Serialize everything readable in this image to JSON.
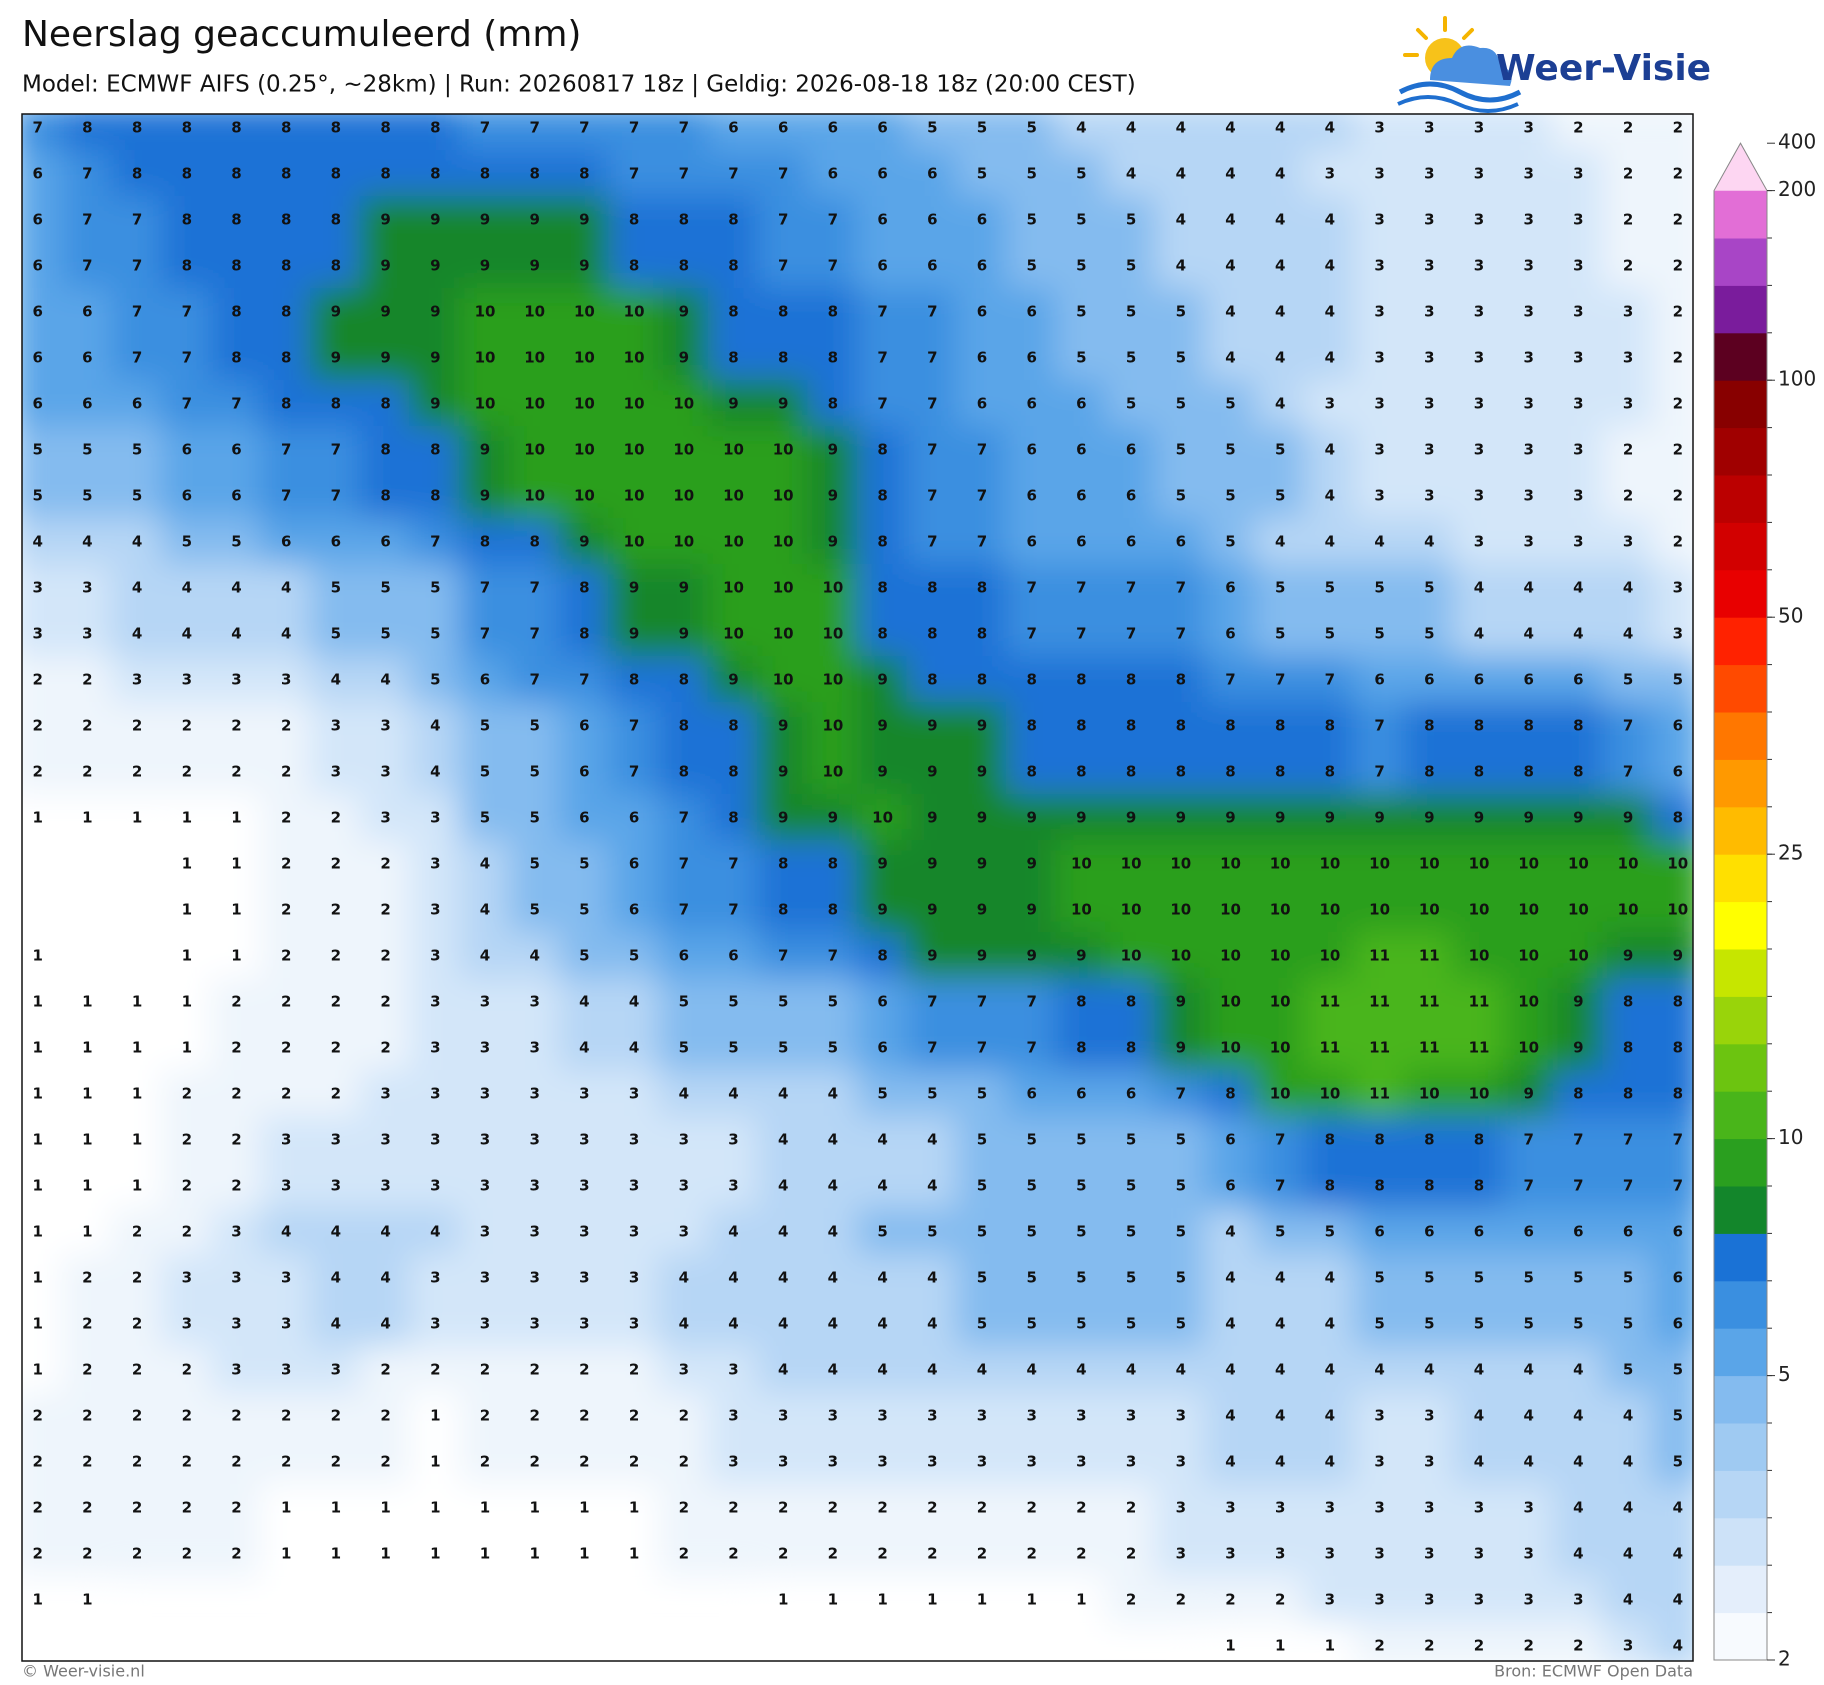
{
  "header": {
    "title": "Neerslag geaccumuleerd (mm)",
    "subtitle": "Model: ECMWF AIFS (0.25°, ~28km)  |  Run: 20260817 18z  |  Geldig: 2026-08-18 18z (20:00 CEST)",
    "logo": "Weer-Visie"
  },
  "map": {
    "values": [
      [
        7,
        8,
        8,
        8,
        8,
        8,
        8,
        8,
        8,
        7,
        7,
        7,
        7,
        7,
        6,
        6,
        6,
        6,
        5,
        5,
        5,
        4,
        4,
        4,
        4,
        4,
        4,
        3,
        3,
        3,
        3,
        2,
        2,
        2
      ],
      [
        6,
        7,
        8,
        8,
        8,
        8,
        8,
        8,
        8,
        8,
        8,
        8,
        7,
        7,
        7,
        7,
        6,
        6,
        6,
        5,
        5,
        5,
        4,
        4,
        4,
        4,
        3,
        3,
        3,
        3,
        3,
        3,
        2,
        2
      ],
      [
        6,
        7,
        7,
        8,
        8,
        8,
        8,
        9,
        9,
        9,
        9,
        9,
        8,
        8,
        8,
        7,
        7,
        6,
        6,
        6,
        5,
        5,
        5,
        4,
        4,
        4,
        4,
        3,
        3,
        3,
        3,
        3,
        2,
        2
      ],
      [
        6,
        7,
        7,
        8,
        8,
        8,
        8,
        9,
        9,
        9,
        9,
        9,
        8,
        8,
        8,
        7,
        7,
        6,
        6,
        6,
        5,
        5,
        5,
        4,
        4,
        4,
        4,
        3,
        3,
        3,
        3,
        3,
        2,
        2
      ],
      [
        6,
        6,
        7,
        7,
        8,
        8,
        9,
        9,
        9,
        10,
        10,
        10,
        10,
        9,
        8,
        8,
        8,
        7,
        7,
        6,
        6,
        5,
        5,
        5,
        4,
        4,
        4,
        3,
        3,
        3,
        3,
        3,
        3,
        2
      ],
      [
        6,
        6,
        7,
        7,
        8,
        8,
        9,
        9,
        9,
        10,
        10,
        10,
        10,
        9,
        8,
        8,
        8,
        7,
        7,
        6,
        6,
        5,
        5,
        5,
        4,
        4,
        4,
        3,
        3,
        3,
        3,
        3,
        3,
        2
      ],
      [
        6,
        6,
        6,
        7,
        7,
        8,
        8,
        8,
        9,
        10,
        10,
        10,
        10,
        10,
        9,
        9,
        8,
        7,
        7,
        6,
        6,
        6,
        5,
        5,
        5,
        4,
        3,
        3,
        3,
        3,
        3,
        3,
        3,
        2
      ],
      [
        5,
        5,
        5,
        6,
        6,
        7,
        7,
        8,
        8,
        9,
        10,
        10,
        10,
        10,
        10,
        10,
        9,
        8,
        7,
        7,
        6,
        6,
        6,
        5,
        5,
        5,
        4,
        3,
        3,
        3,
        3,
        3,
        2,
        2
      ],
      [
        5,
        5,
        5,
        6,
        6,
        7,
        7,
        8,
        8,
        9,
        10,
        10,
        10,
        10,
        10,
        10,
        9,
        8,
        7,
        7,
        6,
        6,
        6,
        5,
        5,
        5,
        4,
        3,
        3,
        3,
        3,
        3,
        2,
        2
      ],
      [
        4,
        4,
        4,
        5,
        5,
        6,
        6,
        6,
        7,
        8,
        8,
        9,
        10,
        10,
        10,
        10,
        9,
        8,
        7,
        7,
        6,
        6,
        6,
        6,
        5,
        4,
        4,
        4,
        4,
        3,
        3,
        3,
        3,
        2
      ],
      [
        3,
        3,
        4,
        4,
        4,
        4,
        5,
        5,
        5,
        7,
        7,
        8,
        9,
        9,
        10,
        10,
        10,
        8,
        8,
        8,
        7,
        7,
        7,
        7,
        6,
        5,
        5,
        5,
        5,
        4,
        4,
        4,
        4,
        3
      ],
      [
        3,
        3,
        4,
        4,
        4,
        4,
        5,
        5,
        5,
        7,
        7,
        8,
        9,
        9,
        10,
        10,
        10,
        8,
        8,
        8,
        7,
        7,
        7,
        7,
        6,
        5,
        5,
        5,
        5,
        4,
        4,
        4,
        4,
        3
      ],
      [
        2,
        2,
        3,
        3,
        3,
        3,
        4,
        4,
        5,
        6,
        7,
        7,
        8,
        8,
        9,
        10,
        10,
        9,
        8,
        8,
        8,
        8,
        8,
        8,
        7,
        7,
        7,
        6,
        6,
        6,
        6,
        6,
        5,
        5
      ],
      [
        2,
        2,
        2,
        2,
        2,
        2,
        3,
        3,
        4,
        5,
        5,
        6,
        7,
        8,
        8,
        9,
        10,
        9,
        9,
        9,
        8,
        8,
        8,
        8,
        8,
        8,
        8,
        7,
        8,
        8,
        8,
        8,
        7,
        6
      ],
      [
        2,
        2,
        2,
        2,
        2,
        2,
        3,
        3,
        4,
        5,
        5,
        6,
        7,
        8,
        8,
        9,
        10,
        9,
        9,
        9,
        8,
        8,
        8,
        8,
        8,
        8,
        8,
        7,
        8,
        8,
        8,
        8,
        7,
        6
      ],
      [
        1,
        1,
        1,
        1,
        1,
        2,
        2,
        3,
        3,
        5,
        5,
        6,
        6,
        7,
        8,
        9,
        9,
        10,
        9,
        9,
        9,
        9,
        9,
        9,
        9,
        9,
        9,
        9,
        9,
        9,
        9,
        9,
        9,
        8
      ],
      [
        null,
        null,
        null,
        1,
        1,
        2,
        2,
        2,
        3,
        4,
        5,
        5,
        6,
        7,
        7,
        8,
        8,
        9,
        9,
        9,
        9,
        10,
        10,
        10,
        10,
        10,
        10,
        10,
        10,
        10,
        10,
        10,
        10,
        10
      ],
      [
        null,
        null,
        null,
        1,
        1,
        2,
        2,
        2,
        3,
        4,
        5,
        5,
        6,
        7,
        7,
        8,
        8,
        9,
        9,
        9,
        9,
        10,
        10,
        10,
        10,
        10,
        10,
        10,
        10,
        10,
        10,
        10,
        10,
        10
      ],
      [
        1,
        null,
        null,
        1,
        1,
        2,
        2,
        2,
        3,
        4,
        4,
        5,
        5,
        6,
        6,
        7,
        7,
        8,
        9,
        9,
        9,
        9,
        10,
        10,
        10,
        10,
        10,
        11,
        11,
        10,
        10,
        10,
        9,
        9
      ],
      [
        1,
        1,
        1,
        1,
        2,
        2,
        2,
        2,
        3,
        3,
        3,
        4,
        4,
        5,
        5,
        5,
        5,
        6,
        7,
        7,
        7,
        8,
        8,
        9,
        10,
        10,
        11,
        11,
        11,
        11,
        10,
        9,
        8,
        8
      ],
      [
        1,
        1,
        1,
        1,
        2,
        2,
        2,
        2,
        3,
        3,
        3,
        4,
        4,
        5,
        5,
        5,
        5,
        6,
        7,
        7,
        7,
        8,
        8,
        9,
        10,
        10,
        11,
        11,
        11,
        11,
        10,
        9,
        8,
        8
      ],
      [
        1,
        1,
        1,
        2,
        2,
        2,
        2,
        3,
        3,
        3,
        3,
        3,
        3,
        4,
        4,
        4,
        4,
        5,
        5,
        5,
        6,
        6,
        6,
        7,
        8,
        10,
        10,
        11,
        10,
        10,
        9,
        8,
        8,
        8
      ],
      [
        1,
        1,
        1,
        2,
        2,
        3,
        3,
        3,
        3,
        3,
        3,
        3,
        3,
        3,
        3,
        4,
        4,
        4,
        4,
        5,
        5,
        5,
        5,
        5,
        6,
        7,
        8,
        8,
        8,
        8,
        7,
        7,
        7,
        7
      ],
      [
        1,
        1,
        1,
        2,
        2,
        3,
        3,
        3,
        3,
        3,
        3,
        3,
        3,
        3,
        3,
        4,
        4,
        4,
        4,
        5,
        5,
        5,
        5,
        5,
        6,
        7,
        8,
        8,
        8,
        8,
        7,
        7,
        7,
        7
      ],
      [
        1,
        1,
        2,
        2,
        3,
        4,
        4,
        4,
        4,
        3,
        3,
        3,
        3,
        3,
        4,
        4,
        4,
        5,
        5,
        5,
        5,
        5,
        5,
        5,
        4,
        5,
        5,
        6,
        6,
        6,
        6,
        6,
        6,
        6
      ],
      [
        1,
        2,
        2,
        3,
        3,
        3,
        4,
        4,
        3,
        3,
        3,
        3,
        3,
        4,
        4,
        4,
        4,
        4,
        4,
        5,
        5,
        5,
        5,
        5,
        4,
        4,
        4,
        5,
        5,
        5,
        5,
        5,
        5,
        6
      ],
      [
        1,
        2,
        2,
        3,
        3,
        3,
        4,
        4,
        3,
        3,
        3,
        3,
        3,
        4,
        4,
        4,
        4,
        4,
        4,
        5,
        5,
        5,
        5,
        5,
        4,
        4,
        4,
        5,
        5,
        5,
        5,
        5,
        5,
        6
      ],
      [
        1,
        2,
        2,
        2,
        3,
        3,
        3,
        2,
        2,
        2,
        2,
        2,
        2,
        3,
        3,
        4,
        4,
        4,
        4,
        4,
        4,
        4,
        4,
        4,
        4,
        4,
        4,
        4,
        4,
        4,
        4,
        4,
        5,
        5
      ],
      [
        2,
        2,
        2,
        2,
        2,
        2,
        2,
        2,
        1,
        2,
        2,
        2,
        2,
        2,
        3,
        3,
        3,
        3,
        3,
        3,
        3,
        3,
        3,
        3,
        4,
        4,
        4,
        3,
        3,
        4,
        4,
        4,
        4,
        5
      ],
      [
        2,
        2,
        2,
        2,
        2,
        2,
        2,
        2,
        1,
        2,
        2,
        2,
        2,
        2,
        3,
        3,
        3,
        3,
        3,
        3,
        3,
        3,
        3,
        3,
        4,
        4,
        4,
        3,
        3,
        4,
        4,
        4,
        4,
        5
      ],
      [
        2,
        2,
        2,
        2,
        2,
        1,
        1,
        1,
        1,
        1,
        1,
        1,
        1,
        2,
        2,
        2,
        2,
        2,
        2,
        2,
        2,
        2,
        2,
        3,
        3,
        3,
        3,
        3,
        3,
        3,
        3,
        4,
        4,
        4
      ],
      [
        2,
        2,
        2,
        2,
        2,
        1,
        1,
        1,
        1,
        1,
        1,
        1,
        1,
        2,
        2,
        2,
        2,
        2,
        2,
        2,
        2,
        2,
        2,
        3,
        3,
        3,
        3,
        3,
        3,
        3,
        3,
        4,
        4,
        4
      ],
      [
        1,
        1,
        null,
        null,
        null,
        null,
        null,
        null,
        null,
        null,
        null,
        null,
        null,
        null,
        null,
        1,
        1,
        1,
        1,
        1,
        1,
        1,
        2,
        2,
        2,
        2,
        3,
        3,
        3,
        3,
        3,
        3,
        4,
        4
      ],
      [
        null,
        null,
        null,
        null,
        null,
        null,
        null,
        null,
        null,
        null,
        null,
        null,
        null,
        null,
        null,
        null,
        null,
        null,
        null,
        null,
        null,
        null,
        null,
        null,
        1,
        1,
        1,
        2,
        2,
        2,
        2,
        2,
        3,
        4
      ]
    ],
    "colorbar": {
      "ticks": [
        2,
        5,
        10,
        25,
        50,
        100,
        200,
        400
      ],
      "colors": [
        "#f7fafe",
        "#e4eefb",
        "#cde2f8",
        "#b6d6f5",
        "#9fcaf2",
        "#84bbef",
        "#5aa5e8",
        "#3a8fe0",
        "#1a72d6",
        "#13862b",
        "#2a9f1f",
        "#49b51a",
        "#6cc410",
        "#99d40a",
        "#c6e600",
        "#ffff00",
        "#ffe000",
        "#ffbb00",
        "#ff9900",
        "#ff7700",
        "#ff4a00",
        "#ff2200",
        "#e80000",
        "#d20000",
        "#bb0000",
        "#a00000",
        "#880000",
        "#5c0020",
        "#7a1c9c",
        "#a845c6",
        "#e26ed6",
        "#fdd6f2"
      ]
    }
  },
  "footer": {
    "left": "© Weer-visie.nl",
    "right": "Bron: ECMWF Open Data"
  }
}
